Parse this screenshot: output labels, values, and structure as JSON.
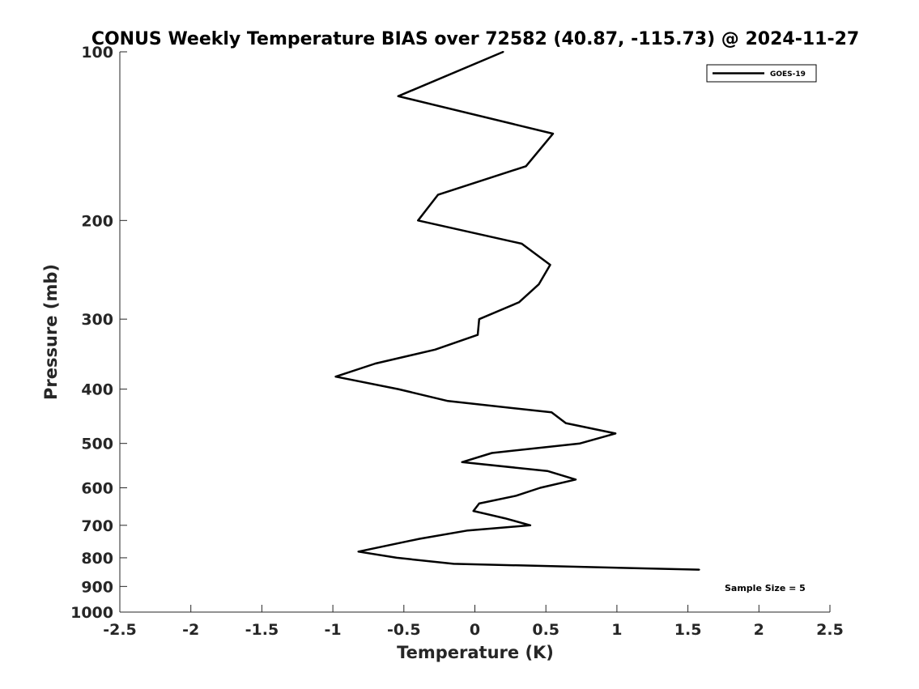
{
  "chart_data": {
    "type": "line",
    "title": "CONUS Weekly Temperature BIAS over 72582 (40.87, -115.73) @ 2024-11-27",
    "xlabel": "Temperature (K)",
    "ylabel": "Pressure (mb)",
    "xlim": [
      -2.5,
      2.5
    ],
    "ylim": [
      100,
      1000
    ],
    "yscale": "log",
    "y_reversed": true,
    "xticks": [
      "-2.5",
      "-2",
      "-1.5",
      "-1",
      "-0.5",
      "0",
      "0.5",
      "1",
      "1.5",
      "2",
      "2.5"
    ],
    "xtick_values": [
      -2.5,
      -2,
      -1.5,
      -1,
      -0.5,
      0,
      0.5,
      1,
      1.5,
      2,
      2.5
    ],
    "yticks": [
      "100",
      "200",
      "300",
      "400",
      "500",
      "600",
      "700",
      "800",
      "900",
      "1000"
    ],
    "ytick_values": [
      100,
      200,
      300,
      400,
      500,
      600,
      700,
      800,
      900,
      1000
    ],
    "grid": false,
    "legend_position": "top-right",
    "annotation": "Sample Size = 5",
    "series": [
      {
        "name": "GOES-19",
        "color": "#000000",
        "temperature": [
          0.2,
          -0.54,
          0.55,
          0.36,
          -0.26,
          -0.4,
          0.33,
          0.53,
          0.45,
          0.31,
          0.03,
          0.02,
          -0.28,
          -0.7,
          -0.98,
          -0.54,
          -0.19,
          0.54,
          0.64,
          0.99,
          0.74,
          0.12,
          -0.09,
          0.51,
          0.71,
          0.46,
          0.29,
          0.03,
          -0.01,
          0.21,
          0.39,
          -0.05,
          -0.39,
          -0.82,
          -0.55,
          -0.15,
          1.58
        ],
        "pressure": [
          100,
          120,
          140,
          160,
          180,
          200,
          220,
          240,
          260,
          280,
          300,
          320,
          340,
          360,
          380,
          400,
          420,
          440,
          460,
          480,
          500,
          520,
          540,
          560,
          580,
          600,
          620,
          640,
          660,
          680,
          700,
          715,
          740,
          780,
          800,
          820,
          840
        ]
      }
    ]
  }
}
